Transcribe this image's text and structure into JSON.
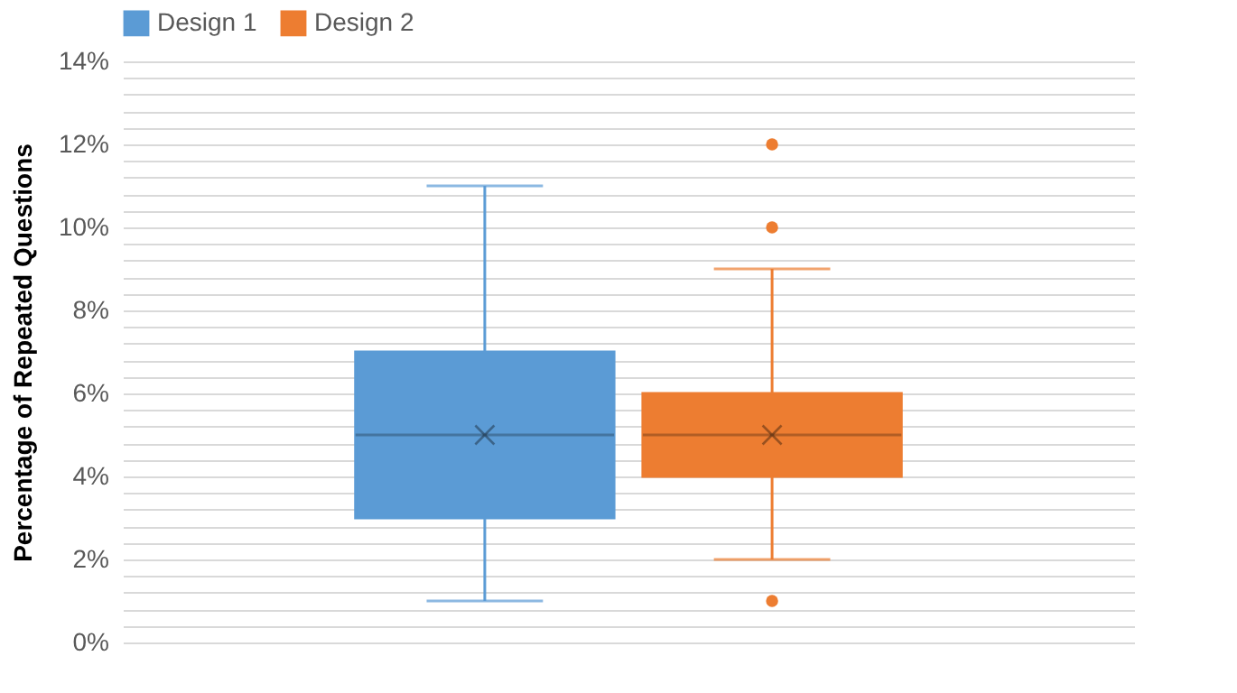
{
  "chart_data": {
    "type": "box",
    "ylabel": "Percentage of Repeated Questions",
    "categories": [
      null
    ],
    "series": [
      {
        "name": "Design 1",
        "color": "#5b9bd5",
        "boxes": [
          {
            "low": 1,
            "q1": 3,
            "median": 5,
            "q3": 7,
            "high": 11,
            "mean": 5
          }
        ]
      },
      {
        "name": "Design 2",
        "color": "#ed7d31",
        "boxes": [
          {
            "low": 2,
            "q1": 4,
            "median": 5,
            "q3": 6,
            "high": 9,
            "mean": 5,
            "outliers": [
              12,
              10,
              1
            ]
          }
        ]
      }
    ],
    "ylim": [
      0,
      14
    ],
    "yticks": [
      {
        "value": 0,
        "label": "0%"
      },
      {
        "value": 0.4,
        "label": null
      },
      {
        "value": 0.8,
        "label": null
      },
      {
        "value": 1.2,
        "label": null
      },
      {
        "value": 1.6,
        "label": null
      },
      {
        "value": 2,
        "label": "2%"
      },
      {
        "value": 2.4,
        "label": null
      },
      {
        "value": 2.8,
        "label": null
      },
      {
        "value": 3.2,
        "label": null
      },
      {
        "value": 3.6,
        "label": null
      },
      {
        "value": 4,
        "label": "4%"
      },
      {
        "value": 4.4,
        "label": null
      },
      {
        "value": 4.8,
        "label": null
      },
      {
        "value": 5.2,
        "label": null
      },
      {
        "value": 5.6,
        "label": null
      },
      {
        "value": 6,
        "label": "6%"
      },
      {
        "value": 6.4,
        "label": null
      },
      {
        "value": 6.8,
        "label": null
      },
      {
        "value": 7.2,
        "label": null
      },
      {
        "value": 7.6,
        "label": null
      },
      {
        "value": 8,
        "label": "8%"
      },
      {
        "value": 8.4,
        "label": null
      },
      {
        "value": 8.8,
        "label": null
      },
      {
        "value": 9.2,
        "label": null
      },
      {
        "value": 9.6,
        "label": null
      },
      {
        "value": 10,
        "label": "10%"
      },
      {
        "value": 10.4,
        "label": null
      },
      {
        "value": 10.8,
        "label": null
      },
      {
        "value": 11.2,
        "label": null
      },
      {
        "value": 11.6,
        "label": null
      },
      {
        "value": 12,
        "label": "12%"
      },
      {
        "value": 12.4,
        "label": null
      },
      {
        "value": 12.8,
        "label": null
      },
      {
        "value": 13.2,
        "label": null
      },
      {
        "value": 13.6,
        "label": null
      },
      {
        "value": 14,
        "label": "14%"
      }
    ],
    "grid": true,
    "legend": "top",
    "tick_labels": "y"
  }
}
